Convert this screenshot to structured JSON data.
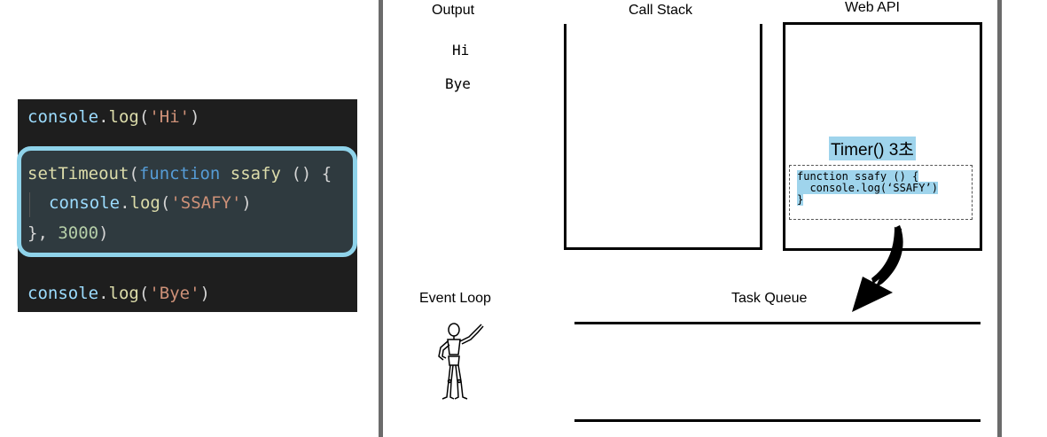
{
  "code": {
    "line1": {
      "obj": "console",
      "dot": ".",
      "fn": "log",
      "open": "(",
      "str": "'Hi'",
      "close": ")"
    },
    "line2": {
      "fn": "setTimeout",
      "open": "(",
      "kw": "function",
      "name": " ssafy ",
      "rest": "() {"
    },
    "line3": {
      "obj": "console",
      "dot": ".",
      "fn": "log",
      "open": "(",
      "str": "'SSAFY'",
      "close": ")"
    },
    "line4": {
      "brace": "}, ",
      "num": "3000",
      "close": ")"
    },
    "line5": {
      "obj": "console",
      "dot": ".",
      "fn": "log",
      "open": "(",
      "str": "'Bye'",
      "close": ")"
    }
  },
  "diagram": {
    "output_label": "Output",
    "output_lines": [
      "Hi",
      "Bye"
    ],
    "call_stack_label": "Call Stack",
    "web_api_label": "Web API",
    "timer_label": "Timer() 3초",
    "callback_lines": [
      "function ssafy () {",
      "  console.log(‘SSAFY’)",
      "}"
    ],
    "event_loop_label": "Event Loop",
    "task_queue_label": "Task Queue"
  },
  "colors": {
    "code_bg": "#1e1e1e",
    "highlight_border": "#8fd3ea",
    "timer_highlight": "#9fd4ec"
  },
  "icons": {
    "event_loop": "wooden-mannequin-icon",
    "arrow": "curved-arrow-icon"
  }
}
